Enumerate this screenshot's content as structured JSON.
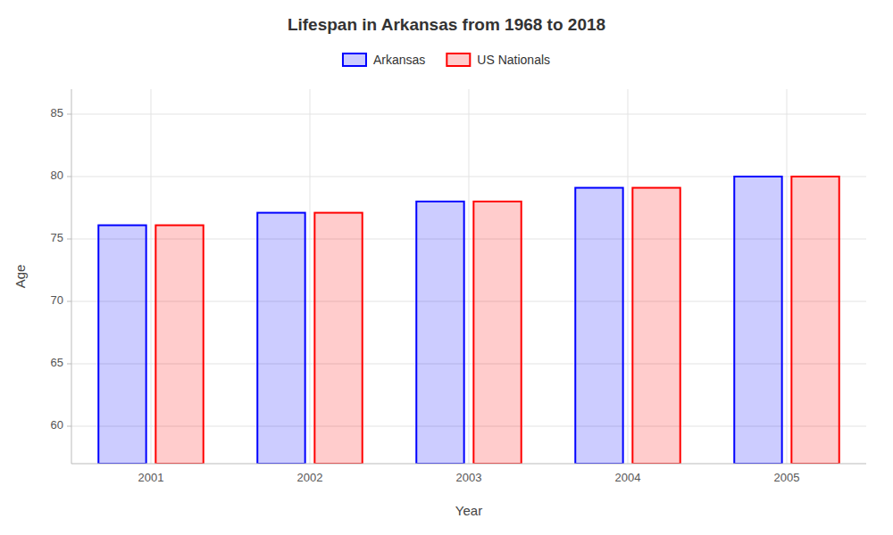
{
  "chart_data": {
    "type": "bar",
    "title": "Lifespan in Arkansas from 1968 to 2018",
    "xlabel": "Year",
    "ylabel": "Age",
    "categories": [
      "2001",
      "2002",
      "2003",
      "2004",
      "2005"
    ],
    "series": [
      {
        "name": "Arkansas",
        "color": "#0000ff",
        "values": [
          76.1,
          77.1,
          78.0,
          79.1,
          80.0
        ]
      },
      {
        "name": "US Nationals",
        "color": "#ff0000",
        "values": [
          76.1,
          77.1,
          78.0,
          79.1,
          80.0
        ]
      }
    ],
    "ylim": [
      57,
      87
    ],
    "yticks": [
      60,
      65,
      70,
      75,
      80,
      85
    ],
    "grid": true,
    "legend": "top"
  }
}
